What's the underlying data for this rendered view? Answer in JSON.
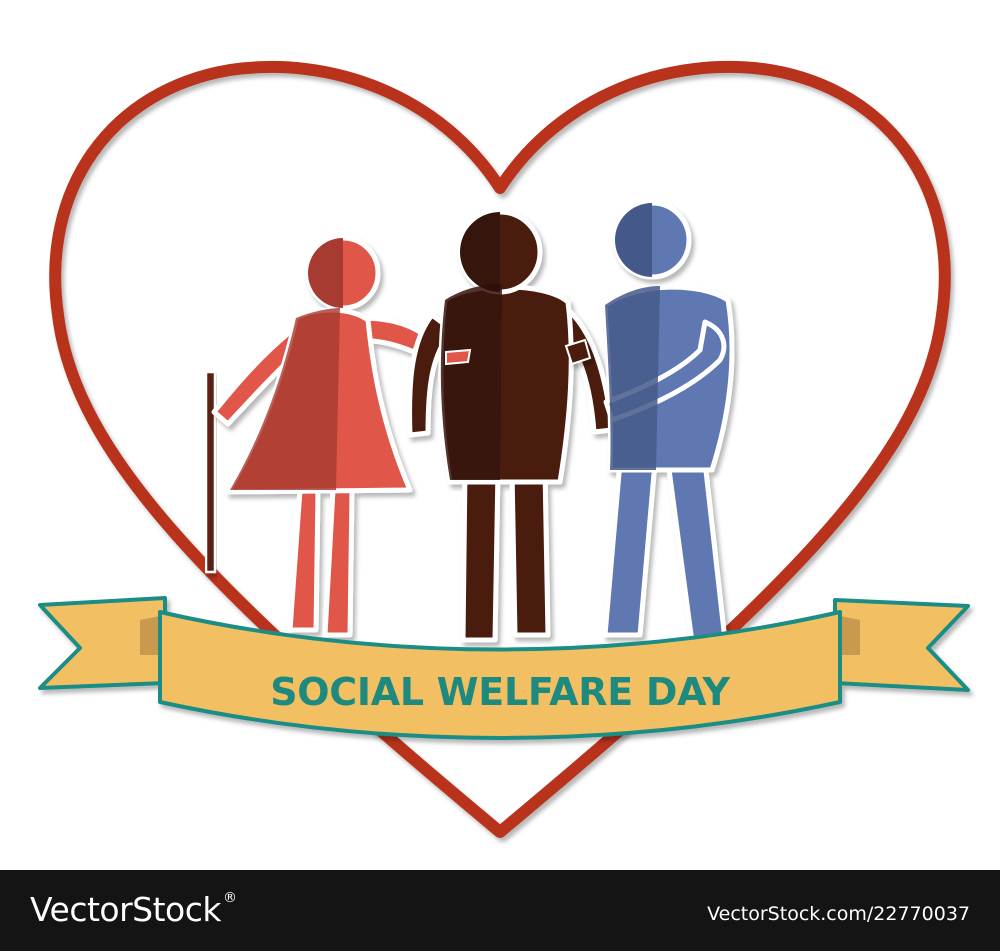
{
  "banner": {
    "text": "SOCIAL WELFARE DAY"
  },
  "footer": {
    "brand_name": "VectorStock",
    "brand_mark": "®",
    "image_ref": "VectorStock.com/22770037"
  },
  "colors": {
    "heart_outline": "#b8311c",
    "woman": "#e0574a",
    "woman_shade": "#a73a31",
    "man_center": "#4a1e11",
    "man_center_shade": "#341208",
    "man_right": "#5f78b2",
    "man_right_shade": "#45598a",
    "ribbon_fill": "#f2c063",
    "ribbon_fold": "#c99a4d",
    "ribbon_edge": "#1f8d84",
    "banner_text": "#1e8a7f",
    "cane": "#5a2412",
    "footer_bg": "#141414"
  },
  "icons": [
    "heart-outline",
    "cane-icon",
    "elderly-woman-figure",
    "elderly-man-figure",
    "helper-figure",
    "ribbon-banner"
  ]
}
